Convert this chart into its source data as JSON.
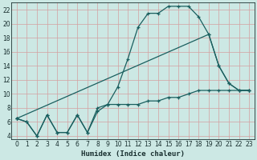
{
  "xlabel": "Humidex (Indice chaleur)",
  "xlim": [
    -0.5,
    23.5
  ],
  "ylim": [
    3.5,
    23
  ],
  "yticks": [
    4,
    6,
    8,
    10,
    12,
    14,
    16,
    18,
    20,
    22
  ],
  "xticks": [
    0,
    1,
    2,
    3,
    4,
    5,
    6,
    7,
    8,
    9,
    10,
    11,
    12,
    13,
    14,
    15,
    16,
    17,
    18,
    19,
    20,
    21,
    22,
    23
  ],
  "background_color": "#cce8e4",
  "grid_color": "#b0d4d0",
  "line_color": "#1a5f5f",
  "curve1_x": [
    0,
    1,
    2,
    3,
    4,
    5,
    6,
    7,
    8,
    9,
    10,
    11,
    12,
    13,
    14,
    15,
    16,
    17,
    18,
    19,
    20,
    21,
    22,
    23
  ],
  "curve1_y": [
    6.5,
    6.0,
    4.0,
    7.0,
    4.5,
    4.5,
    7.0,
    4.5,
    7.5,
    8.5,
    11.0,
    15.0,
    19.5,
    21.5,
    21.5,
    22.5,
    22.5,
    22.5,
    21.0,
    18.5,
    14.0,
    11.5,
    10.5,
    10.5
  ],
  "curve2_x": [
    0,
    1,
    2,
    3,
    4,
    5,
    6,
    7,
    8,
    9,
    10,
    11,
    12,
    13,
    14,
    15,
    16,
    17,
    18,
    19,
    20,
    21,
    22,
    23
  ],
  "curve2_y": [
    6.5,
    6.0,
    4.0,
    7.0,
    4.5,
    4.5,
    7.0,
    4.5,
    8.0,
    8.5,
    8.5,
    8.5,
    8.5,
    9.0,
    9.0,
    9.5,
    9.5,
    10.0,
    10.5,
    10.5,
    10.5,
    10.5,
    10.5,
    10.5
  ],
  "curve3_x": [
    0,
    19,
    20,
    21,
    22,
    23
  ],
  "curve3_y": [
    6.5,
    18.5,
    14.0,
    11.5,
    10.5,
    10.5
  ]
}
